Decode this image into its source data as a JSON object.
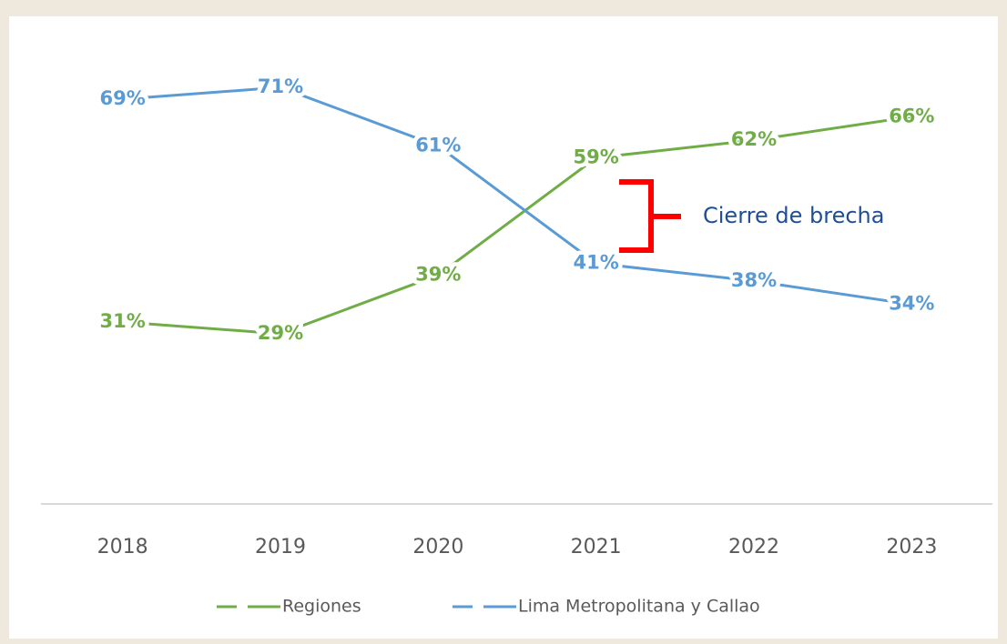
{
  "chart_data": {
    "type": "line",
    "annotation": "Cierre de brecha",
    "categories": [
      "2018",
      "2019",
      "2020",
      "2021",
      "2022",
      "2023"
    ],
    "series": [
      {
        "name": "Regiones",
        "color": "#70ad47",
        "values": [
          31,
          29,
          39,
          59,
          62,
          66
        ],
        "value_labels": [
          "31%",
          "29%",
          "39%",
          "59%",
          "62%",
          "66%"
        ]
      },
      {
        "name": "Lima Metropolitana y Callao",
        "color": "#5b9bd5",
        "values": [
          69,
          71,
          61,
          41,
          38,
          34
        ],
        "value_labels": [
          "69%",
          "71%",
          "61%",
          "41%",
          "38%",
          "34%"
        ]
      }
    ],
    "ylim": [
      0,
      80
    ],
    "grid": false,
    "legend": "bottom"
  }
}
